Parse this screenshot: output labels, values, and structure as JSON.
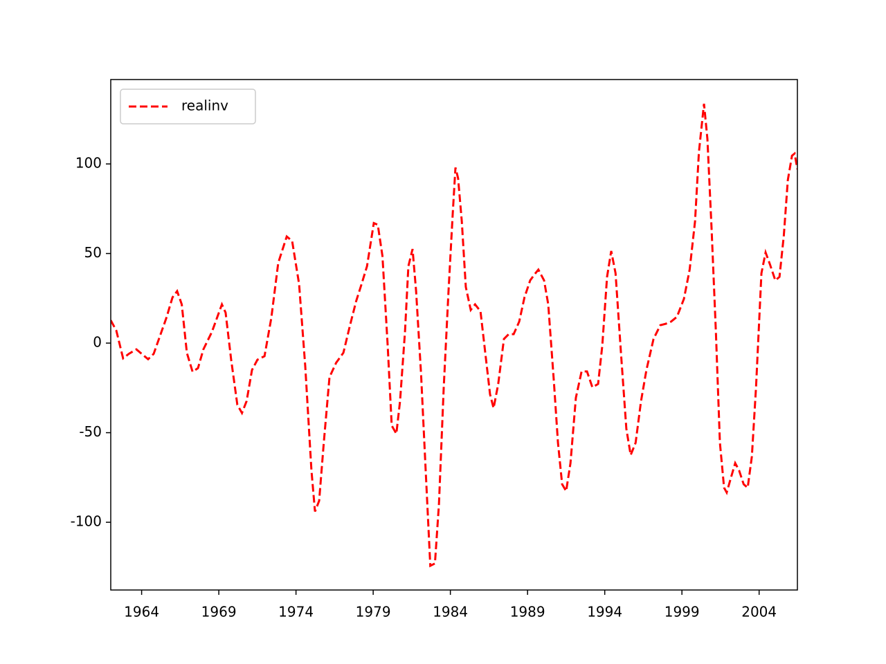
{
  "chart_data": {
    "type": "line",
    "x": [
      1962.0,
      1962.36,
      1962.8,
      1963.17,
      1963.66,
      1964.42,
      1964.78,
      1965.6,
      1966.0,
      1966.3,
      1966.6,
      1966.93,
      1967.3,
      1967.65,
      1968.0,
      1968.55,
      1969.2,
      1969.44,
      1969.8,
      1970.2,
      1970.5,
      1970.8,
      1971.15,
      1971.5,
      1971.96,
      1972.4,
      1972.85,
      1973.4,
      1973.75,
      1974.2,
      1974.6,
      1975.0,
      1975.23,
      1975.5,
      1975.8,
      1976.17,
      1976.6,
      1977.07,
      1977.5,
      1977.9,
      1978.25,
      1978.6,
      1979.04,
      1979.3,
      1979.6,
      1979.94,
      1980.2,
      1980.5,
      1980.74,
      1981.06,
      1981.28,
      1981.55,
      1981.78,
      1982.1,
      1982.4,
      1982.7,
      1983.0,
      1983.26,
      1983.57,
      1983.88,
      1984.15,
      1984.33,
      1984.5,
      1984.74,
      1985.0,
      1985.32,
      1985.6,
      1985.95,
      1986.26,
      1986.57,
      1986.8,
      1987.1,
      1987.47,
      1987.78,
      1988.1,
      1988.46,
      1988.8,
      1989.17,
      1989.44,
      1989.7,
      1990.07,
      1990.34,
      1990.7,
      1990.97,
      1991.24,
      1991.5,
      1991.78,
      1992.13,
      1992.5,
      1992.85,
      1993.2,
      1993.57,
      1993.84,
      1994.15,
      1994.42,
      1994.7,
      1995.05,
      1995.4,
      1995.68,
      1996.0,
      1996.35,
      1996.7,
      1997.16,
      1997.6,
      1997.96,
      1998.3,
      1998.68,
      1999.13,
      1999.5,
      1999.85,
      2000.1,
      2000.43,
      2000.65,
      2000.92,
      2001.2,
      2001.46,
      2001.73,
      2001.9,
      2002.18,
      2002.45,
      2002.7,
      2003.0,
      2003.26,
      2003.53,
      2003.8,
      2004.15,
      2004.42,
      2004.7,
      2005.05,
      2005.32,
      2005.6,
      2005.86,
      2006.13,
      2006.3,
      2006.48
    ],
    "series": [
      {
        "name": "realinv",
        "color": "#ff0000",
        "dash": "dashed",
        "values": [
          12.7,
          7,
          -8.5,
          -6,
          -3.5,
          -9,
          -6,
          14,
          25.5,
          29,
          21.6,
          -5.4,
          -16,
          -14,
          -3.5,
          6.2,
          21.6,
          17,
          -9.3,
          -34.4,
          -39,
          -32.4,
          -15,
          -9.3,
          -7.3,
          14,
          44.8,
          59.5,
          57,
          33,
          -13,
          -71,
          -94,
          -88,
          -55.6,
          -19,
          -11,
          -5.4,
          10,
          23.5,
          33,
          42.9,
          67,
          66,
          48.6,
          -1.5,
          -46,
          -50.6,
          -32.4,
          6.2,
          42.9,
          52.5,
          29,
          -17,
          -71,
          -124.3,
          -123,
          -90,
          -24.7,
          29,
          71.8,
          98,
          92,
          68,
          31.3,
          18.5,
          21.6,
          17.8,
          -5.4,
          -28.6,
          -36.3,
          -22.8,
          2.3,
          5,
          5,
          12,
          25.5,
          35,
          38.2,
          41,
          35,
          21.6,
          -20.8,
          -55.6,
          -78.8,
          -82.6,
          -67,
          -30.5,
          -15.8,
          -15.8,
          -24.7,
          -22.8,
          -1.5,
          37,
          51.4,
          39,
          -5.4,
          -47.9,
          -62.5,
          -55.6,
          -32.4,
          -15,
          2.3,
          10,
          10.8,
          12,
          14.7,
          24.7,
          41,
          68,
          106.6,
          133.6,
          114,
          64,
          6.2,
          -55.6,
          -80.7,
          -83.4,
          -75,
          -67,
          -71,
          -78.8,
          -80.7,
          -63.3,
          -24.7,
          39,
          50.6,
          44,
          35,
          37,
          60,
          91,
          104.6,
          105.8,
          97
        ]
      }
    ],
    "xlim": [
      1962.0,
      2006.48
    ],
    "xticks": [
      1964,
      1969,
      1974,
      1979,
      1984,
      1989,
      1994,
      1999,
      2004
    ],
    "ylim": [
      -137.8,
      147.1
    ],
    "yticks": [
      -100,
      -50,
      0,
      50,
      100
    ],
    "grid": false,
    "legend": "upper left"
  }
}
